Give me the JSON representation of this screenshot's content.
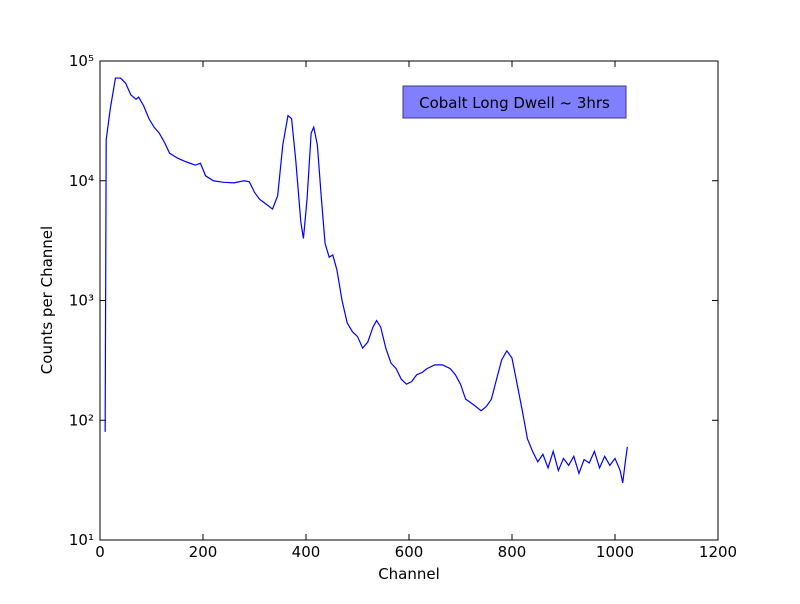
{
  "chart_data": {
    "type": "line",
    "xlabel": "Channel",
    "ylabel": "Counts per Channel",
    "annotation": "Cobalt Long Dwell ~ 3hrs",
    "color": "#0000ff",
    "annotation_color": "#8080ff",
    "log_y": true,
    "grid": false,
    "xlim": [
      0,
      1200
    ],
    "xticks": [
      0,
      200,
      400,
      600,
      800,
      1000,
      1200
    ],
    "ylim": [
      10,
      100000
    ],
    "yticks": [
      {
        "value": 10,
        "label": "10¹"
      },
      {
        "value": 100,
        "label": "10²"
      },
      {
        "value": 1000,
        "label": "10³"
      },
      {
        "value": 10000,
        "label": "10⁴"
      },
      {
        "value": 100000,
        "label": "10⁵"
      }
    ],
    "x": [
      10,
      12,
      20,
      30,
      40,
      50,
      60,
      70,
      75,
      85,
      95,
      105,
      115,
      125,
      135,
      150,
      165,
      175,
      185,
      195,
      205,
      220,
      240,
      260,
      280,
      290,
      300,
      310,
      320,
      335,
      345,
      355,
      365,
      372,
      380,
      390,
      395,
      402,
      410,
      415,
      422,
      430,
      437,
      445,
      452,
      460,
      470,
      480,
      490,
      500,
      510,
      520,
      530,
      537,
      545,
      555,
      565,
      575,
      585,
      595,
      605,
      615,
      625,
      635,
      650,
      665,
      680,
      690,
      700,
      710,
      720,
      730,
      740,
      750,
      760,
      770,
      780,
      790,
      800,
      810,
      820,
      830,
      840,
      850,
      860,
      870,
      880,
      890,
      900,
      910,
      920,
      930,
      940,
      950,
      960,
      970,
      980,
      990,
      1000,
      1010,
      1015,
      1020,
      1024
    ],
    "values": [
      80,
      22000,
      40000,
      72000,
      72000,
      65000,
      52000,
      48000,
      50000,
      42000,
      33000,
      28000,
      25000,
      21000,
      17000,
      15500,
      14500,
      14000,
      13500,
      14000,
      11000,
      10000,
      9700,
      9600,
      10000,
      9800,
      8000,
      7000,
      6500,
      5800,
      7500,
      20000,
      35000,
      33000,
      15000,
      4500,
      3300,
      7000,
      25000,
      28000,
      20000,
      7000,
      3000,
      2300,
      2400,
      1800,
      1000,
      650,
      550,
      500,
      400,
      450,
      600,
      680,
      600,
      400,
      300,
      270,
      220,
      200,
      210,
      240,
      250,
      270,
      290,
      290,
      270,
      240,
      200,
      150,
      140,
      130,
      120,
      130,
      150,
      220,
      320,
      380,
      330,
      200,
      120,
      70,
      55,
      45,
      52,
      40,
      55,
      38,
      48,
      42,
      50,
      36,
      47,
      44,
      55,
      40,
      50,
      42,
      48,
      38,
      30,
      45,
      60
    ]
  }
}
